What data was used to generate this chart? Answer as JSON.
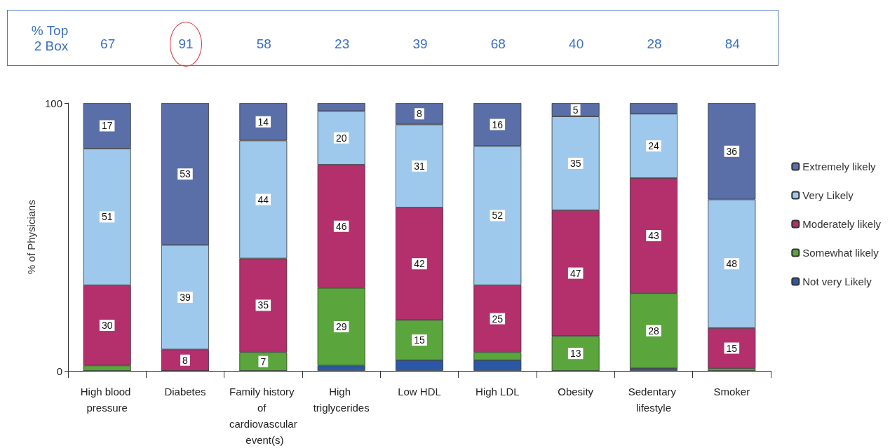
{
  "chart_data": {
    "type": "bar",
    "stacked": true,
    "ylabel": "% of Physicians",
    "categories": [
      "High blood pressure",
      "Diabetes",
      "Family history of cardiovascular event(s)",
      "High triglycerides",
      "Low HDL",
      "High LDL",
      "Obesity",
      "Sedentary lifestyle",
      "Smoker"
    ],
    "series": [
      {
        "name": "Not very Likely",
        "color": "#2a58a6",
        "values": [
          0,
          0,
          0,
          2,
          4,
          4,
          0,
          1,
          0
        ],
        "value_labels": [
          null,
          null,
          null,
          null,
          null,
          null,
          null,
          null,
          null
        ]
      },
      {
        "name": "Somewhat likely",
        "color": "#5aa63c",
        "values": [
          2,
          0,
          7,
          29,
          15,
          3,
          13,
          28,
          1
        ],
        "value_labels": [
          null,
          null,
          "7",
          "29",
          "15",
          null,
          "13",
          "28",
          null
        ]
      },
      {
        "name": "Moderately likely",
        "color": "#b3306c",
        "values": [
          30,
          8,
          35,
          46,
          42,
          25,
          47,
          43,
          15
        ],
        "value_labels": [
          "30",
          "8",
          "35",
          "46",
          "42",
          "25",
          "47",
          "43",
          "15"
        ]
      },
      {
        "name": "Very Likely",
        "color": "#9ec9ec",
        "values": [
          51,
          39,
          44,
          20,
          31,
          52,
          35,
          24,
          48
        ],
        "value_labels": [
          "51",
          "39",
          "44",
          "20",
          "31",
          "52",
          "35",
          "24",
          "48"
        ]
      },
      {
        "name": "Extremely likely",
        "color": "#5a6ea8",
        "values": [
          17,
          53,
          14,
          3,
          8,
          16,
          5,
          4,
          36
        ],
        "value_labels": [
          "17",
          "53",
          "14",
          null,
          "8",
          "16",
          "5",
          null,
          "36"
        ]
      }
    ],
    "ylim": [
      0,
      100
    ],
    "yticks": [
      0,
      100
    ],
    "grid": false,
    "legend": "right",
    "annotations": [
      "% Top\n2 Box",
      "67",
      "91",
      "58",
      "23",
      "39",
      "68",
      "40",
      "28",
      "84"
    ]
  }
}
